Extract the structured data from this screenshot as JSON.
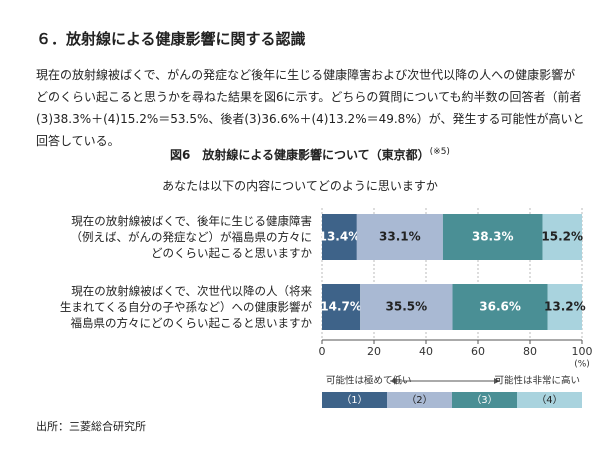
{
  "document": {
    "heading": "６．放射線による健康影響に関する認識",
    "paragraph": "現在の放射線被ばくで、がんの発症など後年に生じる健康障害および次世代以降の人への健康影響がどのくらい起こると思うかを尋ねた結果を図6に示す。どちらの質問についても約半数の回答者（前者(3)38.3%＋(4)15.2%＝53.5%、後者(3)36.6%＋(4)13.2%＝49.8%）が、発生する可能性が高いと回答している。",
    "figure_title": "図6　放射線による健康影響について（東京都）",
    "figure_note": "(※5)",
    "source": "出所：三菱総合研究所"
  },
  "chart_data": {
    "type": "stacked_bar_h",
    "title": "あなたは以下の内容についてどのように思いますか",
    "categories": [
      "現在の放射線被ばくで、後年に生じる健康障害\n（例えば、がんの発症など）が福島県の方々に\nどのくらい起こると思いますか",
      "現在の放射線被ばくで、次世代以降の人（将来\n生まれてくる自分の子や孫など）への健康影響が\n福島県の方々にどのくらい起こると思いますか"
    ],
    "series": [
      {
        "name": "（1）",
        "color": "#3e6389",
        "values": [
          13.4,
          14.7
        ],
        "value_labels": [
          "13.4%",
          "14.7%"
        ]
      },
      {
        "name": "（2）",
        "color": "#a9b9d3",
        "values": [
          33.1,
          35.5
        ],
        "value_labels": [
          "33.1%",
          "35.5%"
        ]
      },
      {
        "name": "（3）",
        "color": "#4a8f95",
        "values": [
          38.3,
          36.6
        ],
        "value_labels": [
          "38.3%",
          "36.6%"
        ]
      },
      {
        "name": "（4）",
        "color": "#a9d3de",
        "values": [
          15.2,
          13.2
        ],
        "value_labels": [
          "15.2%",
          "13.2%"
        ]
      }
    ],
    "xlim": [
      0,
      100
    ],
    "xticks": [
      0,
      20,
      40,
      60,
      80,
      100
    ],
    "x_unit": "(%)",
    "grid": true,
    "legend_low": "可能性は極めて低い",
    "legend_high": "可能性は非常に高い"
  }
}
